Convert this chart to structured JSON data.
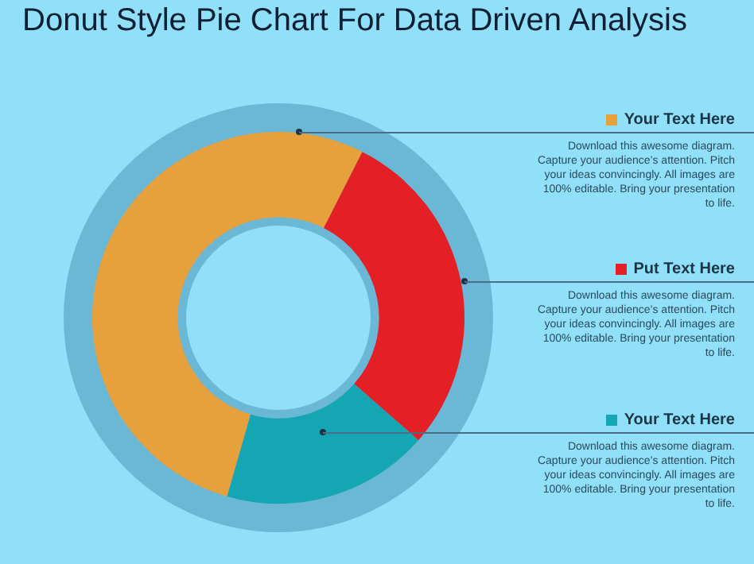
{
  "chart_data": {
    "type": "donut",
    "title": "Donut Style Pie Chart For Data Driven Analysis",
    "categories": [
      "Your Text Here",
      "Put Text Here",
      "Your Text Here"
    ],
    "values": [
      53,
      29,
      18
    ],
    "colors": [
      "#e6a03c",
      "#e41f26",
      "#14a6b2"
    ],
    "annotations": [
      "Download this awesome diagram. Capture your audience’s attention. Pitch your ideas convincingly. All images are 100% editable. Bring your presentation to life.",
      "Download this awesome diagram. Capture your audience’s attention. Pitch your ideas convincingly. All images are 100% editable. Bring your presentation to life.",
      "Download this awesome diagram. Capture your audience’s attention. Pitch your ideas convincingly. All images are 100% editable. Bring your presentation to life."
    ],
    "legend": "right"
  }
}
